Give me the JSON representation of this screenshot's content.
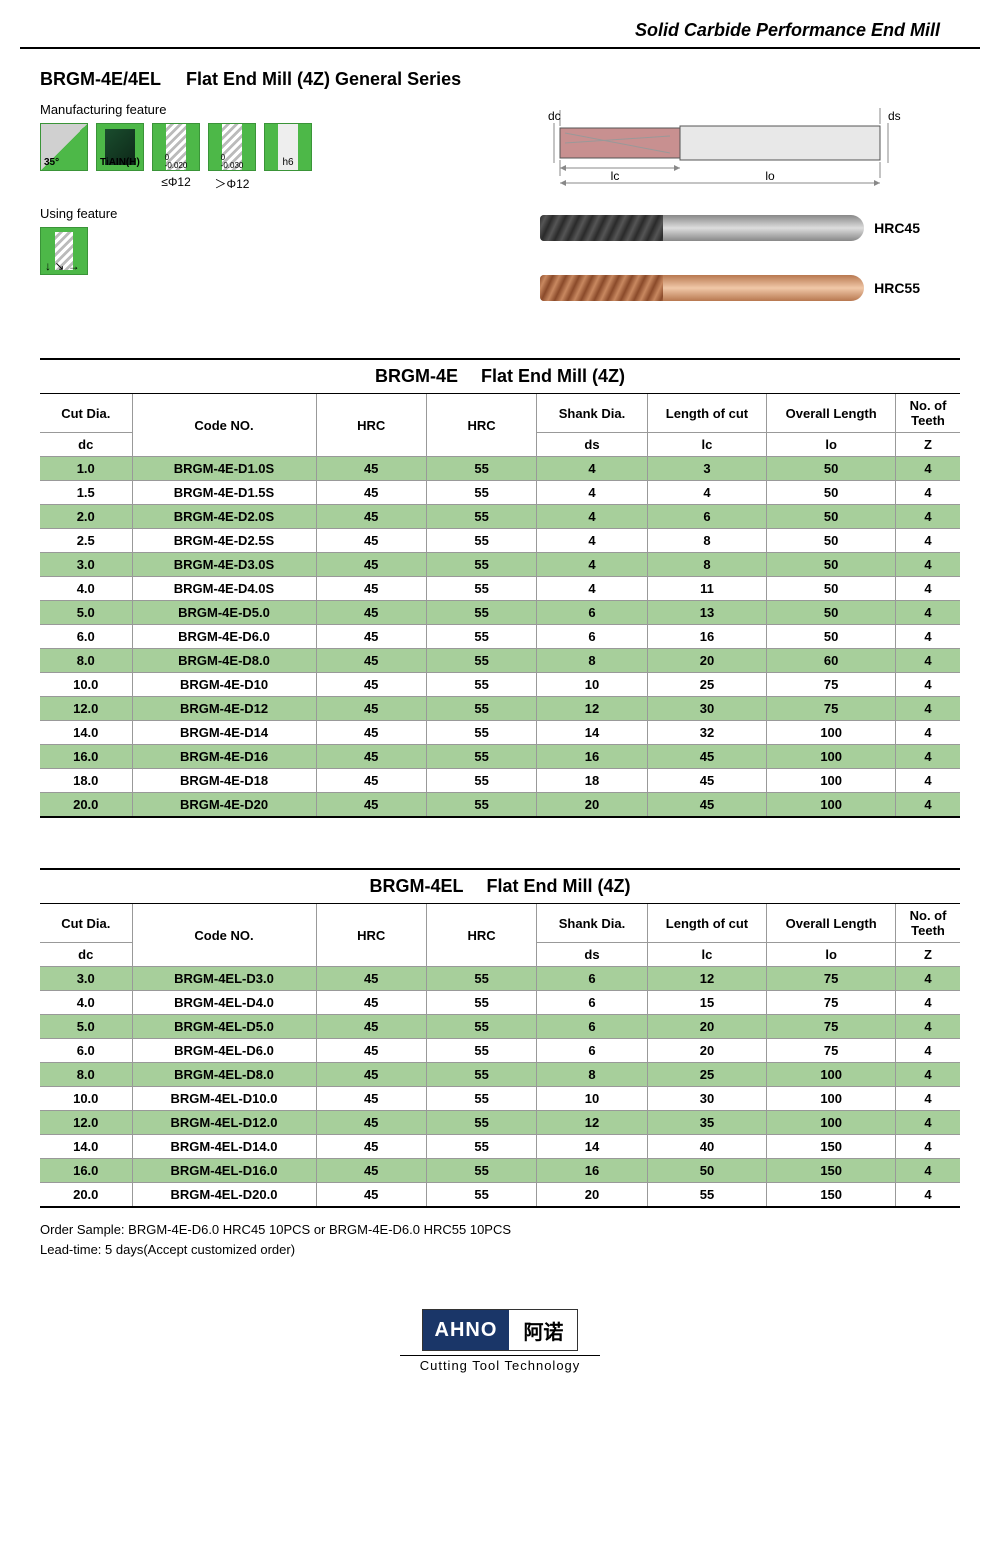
{
  "header": {
    "title": "Solid Carbide Performance End Mill"
  },
  "product": {
    "code": "BRGM-4E/4EL",
    "name": "Flat End Mill (4Z) General Series",
    "mfg_label": "Manufacturing feature",
    "use_label": "Using feature",
    "icons": {
      "helix": "35°",
      "coating": "TiAIN(H)",
      "tol1": "0\n-0.020",
      "tol1_caption": "≤Φ12",
      "tol2": "0\n-0.030",
      "tol2_caption": "＞Φ12",
      "shank": "h6"
    }
  },
  "diagram": {
    "labels": {
      "dc": "dc",
      "ds": "ds",
      "lc": "lc",
      "lo": "lo"
    }
  },
  "photos": {
    "hrc45": "HRC45",
    "hrc55": "HRC55"
  },
  "table1": {
    "title_code": "BRGM-4E",
    "title_name": "Flat End Mill (4Z)",
    "headers": {
      "cut_dia": "Cut Dia.",
      "code": "Code NO.",
      "hrc1": "HRC",
      "hrc2": "HRC",
      "shank": "Shank Dia.",
      "loc": "Length of cut",
      "oal": "Overall Length",
      "teeth": "No. of Teeth",
      "dc": "dc",
      "ds": "ds",
      "lc": "lc",
      "lo": "lo",
      "z": "Z"
    },
    "rows": [
      {
        "dc": "1.0",
        "code": "BRGM-4E-D1.0S",
        "h1": "45",
        "h2": "55",
        "ds": "4",
        "lc": "3",
        "lo": "50",
        "z": "4"
      },
      {
        "dc": "1.5",
        "code": "BRGM-4E-D1.5S",
        "h1": "45",
        "h2": "55",
        "ds": "4",
        "lc": "4",
        "lo": "50",
        "z": "4"
      },
      {
        "dc": "2.0",
        "code": "BRGM-4E-D2.0S",
        "h1": "45",
        "h2": "55",
        "ds": "4",
        "lc": "6",
        "lo": "50",
        "z": "4"
      },
      {
        "dc": "2.5",
        "code": "BRGM-4E-D2.5S",
        "h1": "45",
        "h2": "55",
        "ds": "4",
        "lc": "8",
        "lo": "50",
        "z": "4"
      },
      {
        "dc": "3.0",
        "code": "BRGM-4E-D3.0S",
        "h1": "45",
        "h2": "55",
        "ds": "4",
        "lc": "8",
        "lo": "50",
        "z": "4"
      },
      {
        "dc": "4.0",
        "code": "BRGM-4E-D4.0S",
        "h1": "45",
        "h2": "55",
        "ds": "4",
        "lc": "11",
        "lo": "50",
        "z": "4"
      },
      {
        "dc": "5.0",
        "code": "BRGM-4E-D5.0",
        "h1": "45",
        "h2": "55",
        "ds": "6",
        "lc": "13",
        "lo": "50",
        "z": "4"
      },
      {
        "dc": "6.0",
        "code": "BRGM-4E-D6.0",
        "h1": "45",
        "h2": "55",
        "ds": "6",
        "lc": "16",
        "lo": "50",
        "z": "4"
      },
      {
        "dc": "8.0",
        "code": "BRGM-4E-D8.0",
        "h1": "45",
        "h2": "55",
        "ds": "8",
        "lc": "20",
        "lo": "60",
        "z": "4"
      },
      {
        "dc": "10.0",
        "code": "BRGM-4E-D10",
        "h1": "45",
        "h2": "55",
        "ds": "10",
        "lc": "25",
        "lo": "75",
        "z": "4"
      },
      {
        "dc": "12.0",
        "code": "BRGM-4E-D12",
        "h1": "45",
        "h2": "55",
        "ds": "12",
        "lc": "30",
        "lo": "75",
        "z": "4"
      },
      {
        "dc": "14.0",
        "code": "BRGM-4E-D14",
        "h1": "45",
        "h2": "55",
        "ds": "14",
        "lc": "32",
        "lo": "100",
        "z": "4"
      },
      {
        "dc": "16.0",
        "code": "BRGM-4E-D16",
        "h1": "45",
        "h2": "55",
        "ds": "16",
        "lc": "45",
        "lo": "100",
        "z": "4"
      },
      {
        "dc": "18.0",
        "code": "BRGM-4E-D18",
        "h1": "45",
        "h2": "55",
        "ds": "18",
        "lc": "45",
        "lo": "100",
        "z": "4"
      },
      {
        "dc": "20.0",
        "code": "BRGM-4E-D20",
        "h1": "45",
        "h2": "55",
        "ds": "20",
        "lc": "45",
        "lo": "100",
        "z": "4"
      }
    ]
  },
  "table2": {
    "title_code": "BRGM-4EL",
    "title_name": "Flat End Mill (4Z)",
    "rows": [
      {
        "dc": "3.0",
        "code": "BRGM-4EL-D3.0",
        "h1": "45",
        "h2": "55",
        "ds": "6",
        "lc": "12",
        "lo": "75",
        "z": "4"
      },
      {
        "dc": "4.0",
        "code": "BRGM-4EL-D4.0",
        "h1": "45",
        "h2": "55",
        "ds": "6",
        "lc": "15",
        "lo": "75",
        "z": "4"
      },
      {
        "dc": "5.0",
        "code": "BRGM-4EL-D5.0",
        "h1": "45",
        "h2": "55",
        "ds": "6",
        "lc": "20",
        "lo": "75",
        "z": "4"
      },
      {
        "dc": "6.0",
        "code": "BRGM-4EL-D6.0",
        "h1": "45",
        "h2": "55",
        "ds": "6",
        "lc": "20",
        "lo": "75",
        "z": "4"
      },
      {
        "dc": "8.0",
        "code": "BRGM-4EL-D8.0",
        "h1": "45",
        "h2": "55",
        "ds": "8",
        "lc": "25",
        "lo": "100",
        "z": "4"
      },
      {
        "dc": "10.0",
        "code": "BRGM-4EL-D10.0",
        "h1": "45",
        "h2": "55",
        "ds": "10",
        "lc": "30",
        "lo": "100",
        "z": "4"
      },
      {
        "dc": "12.0",
        "code": "BRGM-4EL-D12.0",
        "h1": "45",
        "h2": "55",
        "ds": "12",
        "lc": "35",
        "lo": "100",
        "z": "4"
      },
      {
        "dc": "14.0",
        "code": "BRGM-4EL-D14.0",
        "h1": "45",
        "h2": "55",
        "ds": "14",
        "lc": "40",
        "lo": "150",
        "z": "4"
      },
      {
        "dc": "16.0",
        "code": "BRGM-4EL-D16.0",
        "h1": "45",
        "h2": "55",
        "ds": "16",
        "lc": "50",
        "lo": "150",
        "z": "4"
      },
      {
        "dc": "20.0",
        "code": "BRGM-4EL-D20.0",
        "h1": "45",
        "h2": "55",
        "ds": "20",
        "lc": "55",
        "lo": "150",
        "z": "4"
      }
    ]
  },
  "footnote": {
    "line1": "Order Sample: BRGM-4E-D6.0 HRC45 10PCS or BRGM-4E-D6.0 HRC55 10PCS",
    "line2": "Lead-time: 5 days(Accept customized order)"
  },
  "footer": {
    "logo_en": "AHNO",
    "logo_cn": "阿诺",
    "tagline": "Cutting Tool Technology"
  },
  "style": {
    "alt_row_bg": "#a7cf9b",
    "icon_green": "#4db848"
  }
}
